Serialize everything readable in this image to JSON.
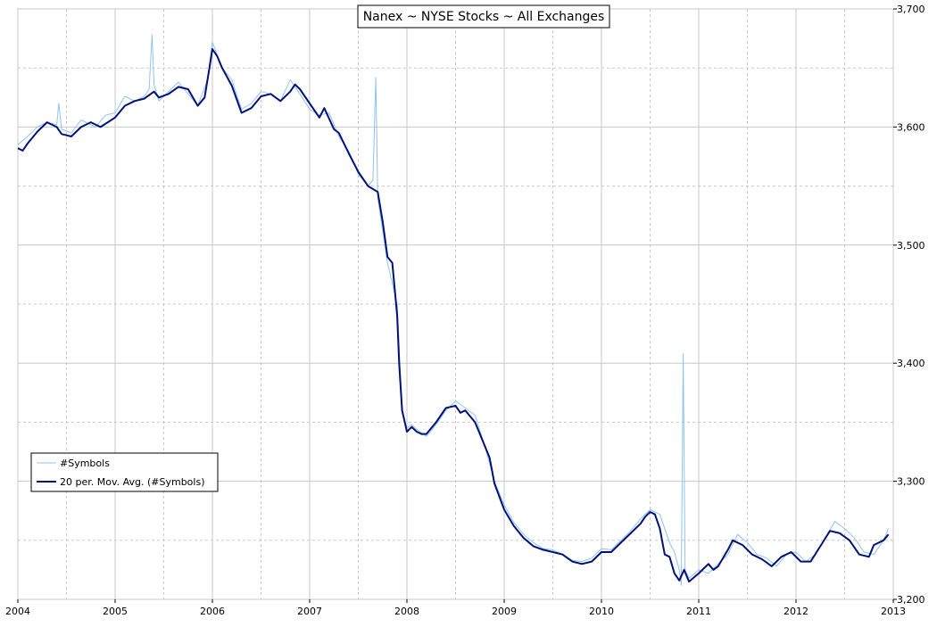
{
  "chart_data": {
    "type": "line",
    "title": "Nanex ~ NYSE Stocks ~ All Exchanges",
    "xlabel": "",
    "ylabel": "",
    "xlim": [
      2004,
      2013
    ],
    "ylim": [
      3200,
      3700
    ],
    "x_ticks": [
      "2004",
      "2005",
      "2006",
      "2007",
      "2008",
      "2009",
      "2010",
      "2011",
      "2012",
      "2013"
    ],
    "y_ticks": [
      "3,200",
      "3,300",
      "3,400",
      "3,500",
      "3,600",
      "3,700"
    ],
    "grid": true,
    "legend_position": "bottom-left",
    "colors": {
      "raw": "#8fc3ee",
      "avg": "#00127a",
      "grid": "#c8c8c8"
    },
    "series": [
      {
        "name": "#Symbols",
        "x": [
          2004.0,
          2004.1,
          2004.2,
          2004.3,
          2004.4,
          2004.42,
          2004.45,
          2004.55,
          2004.65,
          2004.8,
          2004.9,
          2005.0,
          2005.1,
          2005.2,
          2005.3,
          2005.35,
          2005.38,
          2005.4,
          2005.45,
          2005.55,
          2005.65,
          2005.75,
          2005.85,
          2005.95,
          2006.0,
          2006.1,
          2006.2,
          2006.3,
          2006.4,
          2006.5,
          2006.6,
          2006.7,
          2006.8,
          2006.9,
          2007.0,
          2007.1,
          2007.2,
          2007.3,
          2007.4,
          2007.5,
          2007.6,
          2007.65,
          2007.68,
          2007.7,
          2007.8,
          2007.9,
          2007.95,
          2008.0,
          2008.05,
          2008.1,
          2008.2,
          2008.3,
          2008.4,
          2008.5,
          2008.6,
          2008.7,
          2008.8,
          2008.9,
          2009.0,
          2009.1,
          2009.2,
          2009.3,
          2009.4,
          2009.5,
          2009.6,
          2009.7,
          2009.8,
          2009.9,
          2010.0,
          2010.1,
          2010.2,
          2010.3,
          2010.4,
          2010.5,
          2010.6,
          2010.7,
          2010.75,
          2010.8,
          2010.82,
          2010.84,
          2010.86,
          2010.9,
          2011.0,
          2011.1,
          2011.2,
          2011.3,
          2011.4,
          2011.5,
          2011.6,
          2011.7,
          2011.8,
          2011.9,
          2012.0,
          2012.1,
          2012.2,
          2012.3,
          2012.4,
          2012.5,
          2012.6,
          2012.7,
          2012.8,
          2012.9,
          2012.95
        ],
        "y": [
          3585,
          3592,
          3600,
          3604,
          3602,
          3620,
          3598,
          3595,
          3606,
          3600,
          3610,
          3612,
          3626,
          3622,
          3626,
          3632,
          3678,
          3636,
          3622,
          3630,
          3638,
          3628,
          3618,
          3640,
          3672,
          3650,
          3640,
          3615,
          3620,
          3630,
          3628,
          3622,
          3640,
          3628,
          3615,
          3610,
          3612,
          3592,
          3580,
          3560,
          3550,
          3555,
          3642,
          3540,
          3485,
          3450,
          3358,
          3345,
          3348,
          3344,
          3338,
          3348,
          3360,
          3368,
          3362,
          3356,
          3330,
          3300,
          3280,
          3265,
          3255,
          3248,
          3243,
          3242,
          3238,
          3233,
          3232,
          3235,
          3243,
          3242,
          3250,
          3258,
          3268,
          3276,
          3272,
          3248,
          3240,
          3225,
          3212,
          3408,
          3225,
          3218,
          3225,
          3222,
          3230,
          3238,
          3255,
          3248,
          3238,
          3235,
          3228,
          3238,
          3240,
          3232,
          3238,
          3252,
          3266,
          3260,
          3252,
          3240,
          3238,
          3250,
          3260
        ]
      },
      {
        "name": "20 per. Mov. Avg. (#Symbols)",
        "x": [
          2004.0,
          2004.05,
          2004.1,
          2004.2,
          2004.3,
          2004.4,
          2004.45,
          2004.55,
          2004.65,
          2004.75,
          2004.85,
          2005.0,
          2005.1,
          2005.2,
          2005.3,
          2005.4,
          2005.45,
          2005.55,
          2005.65,
          2005.75,
          2005.85,
          2005.92,
          2005.97,
          2006.0,
          2006.05,
          2006.1,
          2006.2,
          2006.3,
          2006.4,
          2006.5,
          2006.6,
          2006.7,
          2006.8,
          2006.85,
          2006.9,
          2007.0,
          2007.1,
          2007.15,
          2007.25,
          2007.3,
          2007.4,
          2007.5,
          2007.6,
          2007.7,
          2007.75,
          2007.8,
          2007.85,
          2007.9,
          2007.92,
          2007.95,
          2008.0,
          2008.05,
          2008.1,
          2008.15,
          2008.2,
          2008.3,
          2008.4,
          2008.5,
          2008.55,
          2008.6,
          2008.7,
          2008.75,
          2008.85,
          2008.9,
          2009.0,
          2009.1,
          2009.2,
          2009.3,
          2009.4,
          2009.5,
          2009.6,
          2009.7,
          2009.8,
          2009.9,
          2010.0,
          2010.1,
          2010.2,
          2010.3,
          2010.4,
          2010.45,
          2010.5,
          2010.55,
          2010.6,
          2010.65,
          2010.7,
          2010.75,
          2010.8,
          2010.85,
          2010.9,
          2011.0,
          2011.1,
          2011.15,
          2011.2,
          2011.3,
          2011.35,
          2011.45,
          2011.55,
          2011.65,
          2011.75,
          2011.85,
          2011.95,
          2012.05,
          2012.15,
          2012.25,
          2012.35,
          2012.45,
          2012.55,
          2012.65,
          2012.75,
          2012.8,
          2012.9,
          2012.95
        ],
        "y": [
          3582,
          3580,
          3586,
          3596,
          3604,
          3600,
          3594,
          3592,
          3600,
          3604,
          3600,
          3608,
          3618,
          3622,
          3624,
          3630,
          3625,
          3628,
          3634,
          3632,
          3618,
          3625,
          3650,
          3666,
          3660,
          3650,
          3635,
          3612,
          3616,
          3626,
          3628,
          3622,
          3630,
          3636,
          3632,
          3620,
          3608,
          3616,
          3598,
          3595,
          3578,
          3562,
          3550,
          3545,
          3520,
          3490,
          3485,
          3440,
          3400,
          3360,
          3342,
          3346,
          3342,
          3340,
          3340,
          3350,
          3362,
          3364,
          3358,
          3360,
          3350,
          3340,
          3320,
          3298,
          3276,
          3262,
          3252,
          3245,
          3242,
          3240,
          3238,
          3232,
          3230,
          3232,
          3240,
          3240,
          3248,
          3256,
          3264,
          3270,
          3274,
          3272,
          3260,
          3238,
          3236,
          3222,
          3216,
          3225,
          3215,
          3222,
          3230,
          3225,
          3228,
          3242,
          3250,
          3246,
          3238,
          3234,
          3228,
          3236,
          3240,
          3232,
          3232,
          3245,
          3258,
          3256,
          3250,
          3238,
          3236,
          3246,
          3250,
          3255
        ]
      }
    ]
  }
}
